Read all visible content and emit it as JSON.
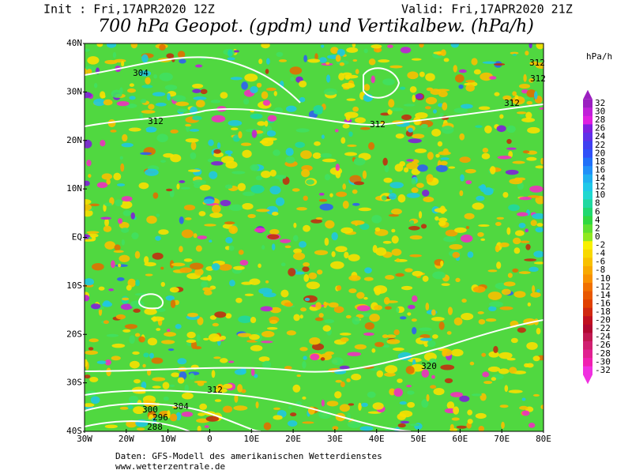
{
  "header": {
    "init": "Init : Fri,17APR2020 12Z",
    "valid": "Valid: Fri,17APR2020 21Z",
    "title": "700 hPa Geopot. (gpdm) und Vertikalbew. (hPa/h)"
  },
  "map": {
    "lat_labels": [
      "40N",
      "30N",
      "20N",
      "10N",
      "EQ",
      "10S",
      "20S",
      "30S",
      "40S"
    ],
    "lon_labels": [
      "30W",
      "20W",
      "10W",
      "0",
      "10E",
      "20E",
      "30E",
      "40E",
      "50E",
      "60E",
      "70E",
      "80E"
    ],
    "contour_labels": [
      "304",
      "312",
      "312",
      "312",
      "312",
      "312",
      "320",
      "312",
      "304",
      "300",
      "296",
      "288"
    ]
  },
  "colorbar": {
    "unit": "hPa/h",
    "labels": [
      32,
      30,
      28,
      26,
      24,
      22,
      20,
      18,
      16,
      14,
      12,
      10,
      8,
      6,
      4,
      2,
      0,
      -2,
      -4,
      -6,
      -8,
      -10,
      -12,
      -14,
      -16,
      -18,
      -20,
      -22,
      -24,
      -26,
      -28,
      -30,
      -32
    ],
    "colors": [
      "#9b1fc0",
      "#c020d8",
      "#e020e0",
      "#8020e0",
      "#6030e8",
      "#4040f0",
      "#3050f8",
      "#2070f8",
      "#2090f8",
      "#20b0f0",
      "#20c8e8",
      "#20d8d0",
      "#20d8a0",
      "#20d870",
      "#30d840",
      "#60e030",
      "#90e820",
      "#f8f000",
      "#f8d800",
      "#f8c000",
      "#f8a800",
      "#f89000",
      "#f07000",
      "#e85800",
      "#e04000",
      "#d02810",
      "#c01020",
      "#b00830",
      "#c01850",
      "#d02070",
      "#e02090",
      "#f020b0",
      "#f030e0"
    ]
  },
  "footer": {
    "source": "Daten: GFS-Modell des amerikanischen Wetterdienstes",
    "site": "www.wetterzentrale.de"
  }
}
